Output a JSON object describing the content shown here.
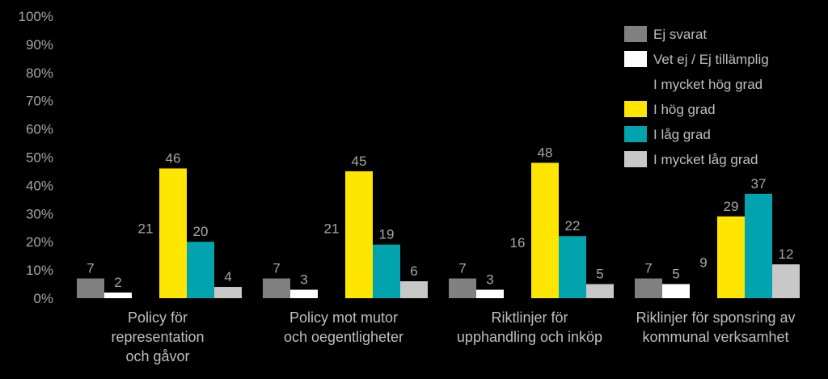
{
  "chart_data": {
    "type": "bar",
    "categories": [
      [
        "Policy för",
        "representation",
        "och gåvor"
      ],
      [
        "Policy mot mutor",
        "och oegentligheter"
      ],
      [
        "Riktlinjer för",
        "upphandling och inköp"
      ],
      [
        "Riklinjer för sponsring av",
        "kommunal verksamhet"
      ]
    ],
    "ylim": [
      0,
      100
    ],
    "yticks": [
      "0%",
      "10%",
      "20%",
      "30%",
      "40%",
      "50%",
      "60%",
      "70%",
      "80%",
      "90%",
      "100%"
    ],
    "legend_position": "top-right",
    "series": [
      {
        "name": "Ej svarat",
        "color": "#808080",
        "values": [
          7,
          7,
          7,
          7
        ]
      },
      {
        "name": "Vet ej / Ej tillämplig",
        "color": "#ffffff",
        "values": [
          2,
          3,
          3,
          5
        ]
      },
      {
        "name": "I mycket hög grad",
        "color": "#000000",
        "values": [
          21,
          21,
          16,
          9
        ]
      },
      {
        "name": "I hög grad",
        "color": "#ffe600",
        "values": [
          46,
          45,
          48,
          29
        ]
      },
      {
        "name": "I låg grad",
        "color": "#00a3ae",
        "values": [
          20,
          19,
          22,
          37
        ]
      },
      {
        "name": "I mycket låg grad",
        "color": "#c8c8c8",
        "values": [
          4,
          6,
          5,
          12
        ]
      }
    ]
  }
}
